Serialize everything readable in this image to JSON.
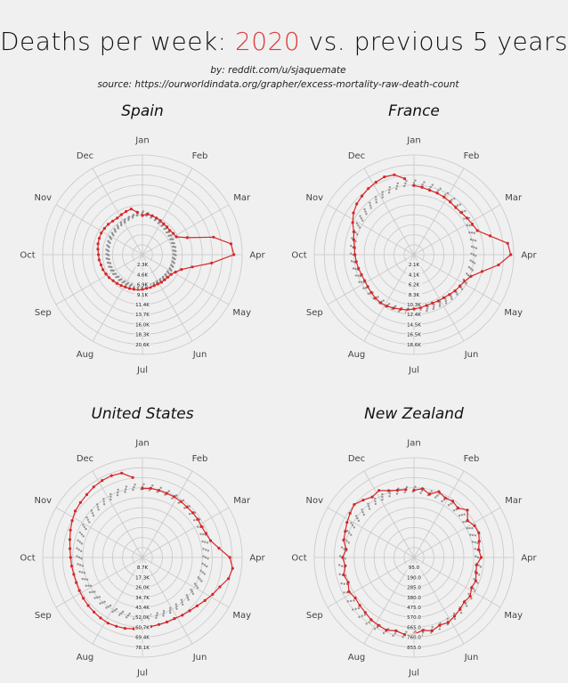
{
  "header": {
    "title_pre": "Deaths per week: ",
    "title_year": "2020",
    "title_post": " vs. previous 5 years",
    "byline": "by: reddit.com/u/sjaquemate",
    "source": "source: https://ourworldindata.org/grapher/excess-mortality-raw-death-count"
  },
  "colors": {
    "current": "#d62728",
    "previous": "#808080",
    "grid": "#c8c8c8",
    "title_accent": "#e03a3a"
  },
  "chart_data": [
    {
      "type": "line",
      "subtype": "polar",
      "title": "Spain",
      "theta_labels": [
        "Jan",
        "Feb",
        "Mar",
        "Apr",
        "May",
        "Jun",
        "Jul",
        "Aug",
        "Sep",
        "Oct",
        "Nov",
        "Dec"
      ],
      "r_ticks": [
        "2.3K",
        "4.6K",
        "6.9K",
        "9.1K",
        "11.4K",
        "13.7K",
        "16.0K",
        "18.3K",
        "20.6K"
      ],
      "rlim": [
        0,
        22900
      ],
      "series": [
        {
          "name": "2020",
          "weeks": [
            1,
            2,
            3,
            4,
            5,
            6,
            7,
            8,
            9,
            10,
            11,
            12,
            13,
            14,
            15,
            16,
            17,
            18,
            19,
            20,
            21,
            22,
            23,
            24,
            25,
            26,
            27,
            28,
            29,
            30,
            31,
            32,
            33,
            34,
            35,
            36,
            37,
            38,
            39,
            40,
            41,
            42,
            43,
            44,
            45,
            46,
            47,
            48,
            49,
            50,
            51,
            52
          ],
          "values": [
            9000,
            9400,
            9200,
            9000,
            8800,
            8600,
            8500,
            8400,
            8600,
            8800,
            11000,
            16800,
            20500,
            21000,
            16000,
            11800,
            9600,
            8600,
            8000,
            7800,
            7700,
            7700,
            7600,
            7600,
            7700,
            7800,
            8000,
            8200,
            8200,
            8300,
            8400,
            8600,
            8800,
            9000,
            9300,
            9500,
            9700,
            9800,
            10000,
            10100,
            10300,
            10500,
            10600,
            10700,
            10600,
            10500,
            10300,
            10200,
            10400,
            10600,
            10800,
            9800
          ]
        },
        {
          "name": "previous",
          "values": [
            9600,
            9300,
            9000,
            8700,
            8400,
            8200,
            8000,
            7800,
            7700,
            7600,
            7500,
            7500,
            7400,
            7400,
            7300,
            7300,
            7300,
            7300,
            7200,
            7200,
            7200,
            7200,
            7200,
            7300,
            7300,
            7400,
            7400,
            7400,
            7500,
            7500,
            7600,
            7600,
            7700,
            7700,
            7800,
            7800,
            7900,
            7900,
            8000,
            8000,
            8100,
            8100,
            8200,
            8300,
            8300,
            8400,
            8500,
            8600,
            8700,
            8900,
            9100,
            9400
          ]
        }
      ]
    },
    {
      "type": "line",
      "subtype": "polar",
      "title": "France",
      "theta_labels": [
        "Jan",
        "Feb",
        "Mar",
        "Apr",
        "May",
        "Jun",
        "Jul",
        "Aug",
        "Sep",
        "Oct",
        "Nov",
        "Dec"
      ],
      "r_ticks": [
        "2.1K",
        "4.1K",
        "6.2K",
        "8.3K",
        "10.3K",
        "12.4K",
        "14.5K",
        "16.5K",
        "18.6K"
      ],
      "rlim": [
        0,
        20600
      ],
      "series": [
        {
          "name": "2020",
          "weeks": [
            1,
            2,
            3,
            4,
            5,
            6,
            7,
            8,
            9,
            10,
            11,
            12,
            13,
            14,
            15,
            16,
            17,
            18,
            19,
            20,
            21,
            22,
            23,
            24,
            25,
            26,
            27,
            28,
            29,
            30,
            31,
            32,
            33,
            34,
            35,
            36,
            37,
            38,
            39,
            40,
            41,
            42,
            43,
            44,
            45,
            46,
            47,
            48,
            49,
            50,
            51,
            52
          ],
          "values": [
            14300,
            14000,
            13700,
            13600,
            13400,
            13200,
            13000,
            13100,
            13300,
            13600,
            14000,
            16200,
            19500,
            20000,
            17600,
            14500,
            12600,
            11800,
            11500,
            11300,
            11000,
            10800,
            10800,
            10700,
            10800,
            11000,
            11200,
            11500,
            11600,
            11800,
            12000,
            12100,
            12000,
            11800,
            11600,
            11500,
            11600,
            11800,
            12000,
            12200,
            12400,
            12800,
            13300,
            14300,
            15200,
            15800,
            16200,
            16600,
            16900,
            17200,
            17000,
            15800
          ]
        },
        {
          "name": "previous",
          "values": [
            14800,
            14600,
            14400,
            14200,
            14000,
            13800,
            13600,
            13400,
            13200,
            13000,
            12800,
            12600,
            12500,
            12300,
            12200,
            12100,
            12000,
            11900,
            11800,
            11700,
            11600,
            11600,
            11500,
            11500,
            11500,
            11500,
            11600,
            11600,
            11700,
            11700,
            11800,
            11800,
            11900,
            12000,
            12100,
            12200,
            12300,
            12400,
            12500,
            12600,
            12700,
            12800,
            12900,
            13000,
            13200,
            13400,
            13600,
            13800,
            14000,
            14300,
            14600,
            14800
          ]
        }
      ]
    },
    {
      "type": "line",
      "subtype": "polar",
      "title": "United States",
      "theta_labels": [
        "Jan",
        "Feb",
        "Mar",
        "Apr",
        "May",
        "Jun",
        "Jul",
        "Aug",
        "Sep",
        "Oct",
        "Nov",
        "Dec"
      ],
      "r_ticks": [
        "8.7K",
        "17.3K",
        "26.0K",
        "34.7K",
        "43.4K",
        "52.0K",
        "60.7K",
        "69.4K",
        "78.1K"
      ],
      "rlim": [
        0,
        86700
      ],
      "series": [
        {
          "name": "2020",
          "weeks": [
            1,
            2,
            3,
            4,
            5,
            6,
            7,
            8,
            9,
            10,
            11,
            12,
            13,
            14,
            15,
            16,
            17,
            18,
            19,
            20,
            21,
            22,
            23,
            24,
            25,
            26,
            27,
            28,
            29,
            30,
            31,
            32,
            33,
            34,
            35,
            36,
            37,
            38,
            39,
            40,
            41,
            42,
            43,
            44,
            45,
            46,
            47,
            48,
            49,
            50,
            51,
            52
          ],
          "values": [
            60000,
            60500,
            60000,
            59500,
            59500,
            59000,
            58500,
            58500,
            58500,
            58000,
            59000,
            61000,
            67000,
            76000,
            79000,
            77000,
            72000,
            69000,
            66000,
            63500,
            62000,
            61000,
            60000,
            60000,
            60000,
            60500,
            61500,
            62500,
            63500,
            64000,
            64500,
            64000,
            63500,
            63000,
            62500,
            62000,
            61500,
            61500,
            62000,
            62500,
            63500,
            65000,
            67000,
            69000,
            71000,
            72000,
            73000,
            74500,
            75500,
            76000,
            75500,
            70000
          ]
        },
        {
          "name": "previous",
          "values": [
            61500,
            61000,
            60500,
            60000,
            59500,
            59000,
            58500,
            58000,
            57500,
            57000,
            56500,
            56000,
            55500,
            55000,
            54500,
            54000,
            53500,
            53000,
            52500,
            52500,
            52000,
            52000,
            52000,
            52000,
            52000,
            52000,
            52000,
            52000,
            52000,
            52000,
            52000,
            52000,
            52500,
            52500,
            53000,
            53000,
            53500,
            54000,
            54500,
            55000,
            55500,
            56000,
            56500,
            57000,
            57500,
            58000,
            58500,
            59000,
            59500,
            60500,
            61000,
            61500
          ]
        }
      ]
    },
    {
      "type": "line",
      "subtype": "polar",
      "title": "New Zealand",
      "theta_labels": [
        "Jan",
        "Feb",
        "Mar",
        "Apr",
        "May",
        "Jun",
        "Jul",
        "Aug",
        "Sep",
        "Oct",
        "Nov",
        "Dec"
      ],
      "r_ticks": [
        "95.0",
        "190.0",
        "285.0",
        "380.0",
        "475.0",
        "570.0",
        "665.0",
        "760.0",
        "855.0"
      ],
      "rlim": [
        0,
        950
      ],
      "series": [
        {
          "name": "2020",
          "weeks": [
            1,
            2,
            3,
            4,
            5,
            6,
            7,
            8,
            9,
            10,
            11,
            12,
            13,
            14,
            15,
            16,
            17,
            18,
            19,
            20,
            21,
            22,
            23,
            24,
            25,
            26,
            27,
            28,
            29,
            30,
            31,
            32,
            33,
            34,
            35,
            36,
            37,
            38,
            39,
            40,
            41,
            42,
            43,
            44,
            45,
            46,
            47,
            48,
            49,
            50,
            51,
            52
          ],
          "values": [
            640,
            660,
            620,
            670,
            640,
            650,
            630,
            680,
            620,
            650,
            660,
            640,
            620,
            640,
            600,
            610,
            630,
            620,
            650,
            640,
            660,
            680,
            700,
            690,
            720,
            700,
            730,
            740,
            720,
            740,
            730,
            720,
            700,
            690,
            680,
            700,
            670,
            690,
            660,
            680,
            650,
            690,
            700,
            720,
            740,
            760,
            730,
            700,
            720,
            680,
            660,
            650
          ]
        },
        {
          "name": "previous",
          "values": [
            650,
            640,
            630,
            630,
            620,
            620,
            610,
            610,
            600,
            600,
            600,
            600,
            610,
            610,
            620,
            620,
            630,
            640,
            650,
            660,
            670,
            680,
            690,
            700,
            710,
            720,
            730,
            740,
            745,
            750,
            750,
            750,
            745,
            740,
            730,
            720,
            710,
            700,
            690,
            680,
            670,
            660,
            660,
            660,
            655,
            650,
            650,
            650,
            650,
            650,
            650,
            650
          ]
        }
      ]
    }
  ]
}
